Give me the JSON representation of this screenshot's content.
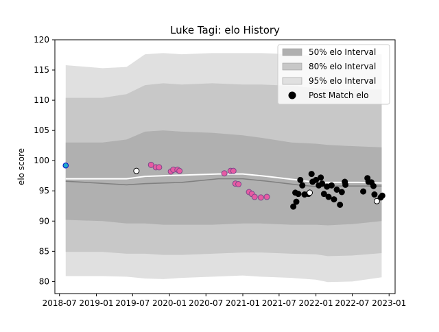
{
  "chart_data": {
    "type": "scatter",
    "title": "Luke Tagi: elo History",
    "xlabel": "",
    "ylabel": "elo score",
    "xlim": [
      "2018-06-08",
      "2023-01-31"
    ],
    "ylim": [
      78,
      120
    ],
    "x_ticks": [
      "2018-07",
      "2019-01",
      "2019-07",
      "2020-01",
      "2020-07",
      "2021-01",
      "2021-07",
      "2022-01",
      "2022-07",
      "2023-01"
    ],
    "y_ticks": [
      80,
      85,
      90,
      95,
      100,
      105,
      110,
      115,
      120
    ],
    "grid": false,
    "legend": {
      "placement": "top-right",
      "entries": [
        {
          "label": "50% elo Interval",
          "color": "#b0b0b0"
        },
        {
          "label": "80% elo Interval",
          "color": "#c8c8c8"
        },
        {
          "label": "95% elo Interval",
          "color": "#e0e0e0"
        },
        {
          "label": "Post Match elo",
          "color": "#000000"
        }
      ]
    },
    "colors": {
      "band_50": "#b0b0b0",
      "band_80": "#c8c8c8",
      "band_95": "#e0e0e0",
      "mean_line": "#ffffff",
      "median_line": "#808080",
      "highlight_pink": "#e75ba3",
      "highlight_cyan": "#1fa9c9",
      "loss_fill": "#ffffff",
      "win_fill": "#000000"
    },
    "series": [
      {
        "name": "95% elo Interval",
        "band": true,
        "x": [
          "2018-08-01",
          "2019-02-01",
          "2019-06-01",
          "2019-09-01",
          "2019-12-01",
          "2020-03-01",
          "2020-08-01",
          "2021-01-01",
          "2021-04-01",
          "2021-09-01",
          "2022-01-01",
          "2022-03-01",
          "2022-07-01",
          "2022-11-25"
        ],
        "lower": [
          80.9,
          80.9,
          80.8,
          80.5,
          80.4,
          80.6,
          80.8,
          81.0,
          80.8,
          80.6,
          80.3,
          79.9,
          80.0,
          80.7
        ],
        "upper": [
          115.8,
          115.3,
          115.5,
          117.6,
          117.8,
          117.6,
          117.8,
          117.8,
          117.8,
          117.6,
          117.3,
          117.4,
          117.5,
          117.6
        ]
      },
      {
        "name": "80% elo Interval",
        "band": true,
        "x": [
          "2018-08-01",
          "2019-02-01",
          "2019-06-01",
          "2019-09-01",
          "2019-12-01",
          "2020-03-01",
          "2020-08-01",
          "2021-01-01",
          "2021-04-01",
          "2021-09-01",
          "2022-01-01",
          "2022-03-01",
          "2022-07-01",
          "2022-11-25"
        ],
        "lower": [
          84.9,
          84.9,
          84.6,
          84.6,
          84.4,
          84.4,
          84.6,
          84.8,
          84.8,
          84.6,
          84.5,
          84.2,
          84.3,
          84.7
        ],
        "upper": [
          110.4,
          110.4,
          111.0,
          112.5,
          112.8,
          112.6,
          112.8,
          112.6,
          112.6,
          112.4,
          112.0,
          111.8,
          111.8,
          111.8
        ]
      },
      {
        "name": "50% elo Interval",
        "band": true,
        "x": [
          "2018-08-01",
          "2019-02-01",
          "2019-06-01",
          "2019-09-01",
          "2019-12-01",
          "2020-03-01",
          "2020-08-01",
          "2021-01-01",
          "2021-04-01",
          "2021-09-01",
          "2022-01-01",
          "2022-03-01",
          "2022-07-01",
          "2022-11-25"
        ],
        "lower": [
          90.2,
          90.0,
          89.6,
          89.6,
          89.4,
          89.4,
          89.4,
          89.6,
          89.6,
          89.4,
          89.4,
          89.3,
          89.5,
          90.0
        ],
        "upper": [
          103.0,
          103.0,
          103.5,
          104.8,
          105.0,
          104.8,
          104.6,
          104.2,
          103.8,
          103.0,
          102.8,
          102.6,
          102.4,
          102.2
        ]
      },
      {
        "name": "mean",
        "line": true,
        "x": [
          "2018-08-01",
          "2019-06-01",
          "2019-09-01",
          "2020-03-01",
          "2020-09-01",
          "2021-01-01",
          "2021-05-01",
          "2021-10-01",
          "2022-01-01",
          "2022-05-01",
          "2022-08-01",
          "2022-11-25"
        ],
        "values": [
          97.0,
          97.0,
          97.4,
          97.6,
          97.8,
          97.8,
          97.4,
          96.8,
          96.4,
          96.4,
          96.4,
          96.3
        ]
      },
      {
        "name": "median",
        "line": true,
        "x": [
          "2018-08-01",
          "2019-06-01",
          "2019-09-01",
          "2020-03-01",
          "2020-09-01",
          "2021-01-01",
          "2021-05-01",
          "2021-10-01",
          "2022-01-01",
          "2022-05-01",
          "2022-08-01",
          "2022-11-25"
        ],
        "values": [
          96.6,
          96.0,
          96.2,
          96.4,
          97.0,
          97.0,
          96.6,
          96.0,
          95.7,
          95.8,
          95.8,
          95.8
        ]
      },
      {
        "name": "Post Match elo",
        "points": [
          {
            "x": "2018-08-01",
            "y": 99.2,
            "fill": "#1fa9c9"
          },
          {
            "x": "2019-07-20",
            "y": 98.3,
            "fill": "#ffffff"
          },
          {
            "x": "2019-10-01",
            "y": 99.3,
            "fill": "#e75ba3"
          },
          {
            "x": "2019-10-25",
            "y": 98.9,
            "fill": "#e75ba3"
          },
          {
            "x": "2019-11-10",
            "y": 98.9,
            "fill": "#e75ba3"
          },
          {
            "x": "2020-01-08",
            "y": 98.2,
            "fill": "#e75ba3"
          },
          {
            "x": "2020-01-20",
            "y": 98.5,
            "fill": "#e75ba3"
          },
          {
            "x": "2020-02-10",
            "y": 98.5,
            "fill": "#e75ba3"
          },
          {
            "x": "2020-02-20",
            "y": 98.3,
            "fill": "#e75ba3"
          },
          {
            "x": "2020-10-01",
            "y": 97.9,
            "fill": "#e75ba3"
          },
          {
            "x": "2020-11-01",
            "y": 98.3,
            "fill": "#e75ba3"
          },
          {
            "x": "2020-11-15",
            "y": 98.3,
            "fill": "#e75ba3"
          },
          {
            "x": "2020-11-25",
            "y": 96.2,
            "fill": "#e75ba3"
          },
          {
            "x": "2020-12-10",
            "y": 96.1,
            "fill": "#e75ba3"
          },
          {
            "x": "2021-02-01",
            "y": 94.8,
            "fill": "#e75ba3"
          },
          {
            "x": "2021-02-15",
            "y": 94.5,
            "fill": "#e75ba3"
          },
          {
            "x": "2021-03-01",
            "y": 94.0,
            "fill": "#e75ba3"
          },
          {
            "x": "2021-04-01",
            "y": 93.9,
            "fill": "#e75ba3"
          },
          {
            "x": "2021-05-01",
            "y": 94.0,
            "fill": "#e75ba3"
          },
          {
            "x": "2021-09-10",
            "y": 92.4,
            "fill": "#000000"
          },
          {
            "x": "2021-09-25",
            "y": 93.2,
            "fill": "#000000"
          },
          {
            "x": "2021-09-20",
            "y": 94.7,
            "fill": "#000000"
          },
          {
            "x": "2021-10-05",
            "y": 94.5,
            "fill": "#000000"
          },
          {
            "x": "2021-10-15",
            "y": 96.8,
            "fill": "#000000"
          },
          {
            "x": "2021-10-25",
            "y": 95.9,
            "fill": "#000000"
          },
          {
            "x": "2021-11-05",
            "y": 94.4,
            "fill": "#000000"
          },
          {
            "x": "2021-11-25",
            "y": 94.5,
            "fill": "#000000"
          },
          {
            "x": "2021-12-01",
            "y": 94.7,
            "fill": "#ffffff"
          },
          {
            "x": "2021-12-10",
            "y": 97.8,
            "fill": "#000000"
          },
          {
            "x": "2021-12-15",
            "y": 96.5,
            "fill": "#000000"
          },
          {
            "x": "2022-01-01",
            "y": 96.8,
            "fill": "#000000"
          },
          {
            "x": "2022-01-15",
            "y": 95.9,
            "fill": "#000000"
          },
          {
            "x": "2022-01-25",
            "y": 97.2,
            "fill": "#000000"
          },
          {
            "x": "2022-02-01",
            "y": 96.2,
            "fill": "#000000"
          },
          {
            "x": "2022-02-10",
            "y": 94.5,
            "fill": "#000000"
          },
          {
            "x": "2022-02-25",
            "y": 95.7,
            "fill": "#000000"
          },
          {
            "x": "2022-03-05",
            "y": 94.0,
            "fill": "#000000"
          },
          {
            "x": "2022-03-20",
            "y": 95.9,
            "fill": "#000000"
          },
          {
            "x": "2022-04-01",
            "y": 93.6,
            "fill": "#000000"
          },
          {
            "x": "2022-04-15",
            "y": 95.2,
            "fill": "#000000"
          },
          {
            "x": "2022-05-01",
            "y": 92.7,
            "fill": "#000000"
          },
          {
            "x": "2022-05-10",
            "y": 94.8,
            "fill": "#000000"
          },
          {
            "x": "2022-05-25",
            "y": 96.5,
            "fill": "#000000"
          },
          {
            "x": "2022-05-28",
            "y": 96.0,
            "fill": "#000000"
          },
          {
            "x": "2022-08-25",
            "y": 94.9,
            "fill": "#000000"
          },
          {
            "x": "2022-09-15",
            "y": 97.1,
            "fill": "#000000"
          },
          {
            "x": "2022-09-20",
            "y": 96.5,
            "fill": "#000000"
          },
          {
            "x": "2022-10-05",
            "y": 96.4,
            "fill": "#000000"
          },
          {
            "x": "2022-10-15",
            "y": 95.8,
            "fill": "#000000"
          },
          {
            "x": "2022-10-20",
            "y": 94.4,
            "fill": "#000000"
          },
          {
            "x": "2022-11-01",
            "y": 93.3,
            "fill": "#ffffff"
          },
          {
            "x": "2022-11-20",
            "y": 93.9,
            "fill": "#000000"
          },
          {
            "x": "2022-11-28",
            "y": 94.2,
            "fill": "#000000"
          }
        ]
      }
    ]
  }
}
